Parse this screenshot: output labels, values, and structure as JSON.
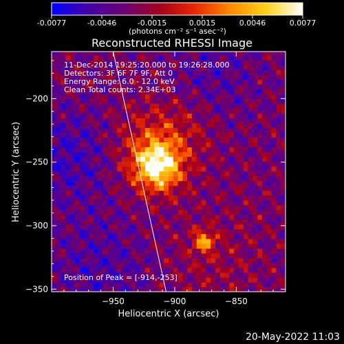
{
  "colorbar": {
    "ticks": [
      "-0.0077",
      "-0.0046",
      "-0.0015",
      "0.0015",
      "0.0046",
      "0.0077"
    ],
    "unit_label": "(photons cm⁻² s⁻¹ asec⁻²)",
    "min": -0.0077,
    "max": 0.0077,
    "colors": [
      "#0000ff",
      "#4400aa",
      "#6a0075",
      "#a30020",
      "#e82800",
      "#ff8a00",
      "#ffd21a",
      "#ffffff"
    ]
  },
  "chart_data": {
    "type": "heatmap",
    "title": "Reconstructed RHESSI Image",
    "xlabel": "Heliocentric X (arcsec)",
    "ylabel": "Heliocentric Y (arcsec)",
    "xlim": [
      -1000,
      -810
    ],
    "ylim": [
      -352,
      -163
    ],
    "xticks": [
      -950,
      -900,
      -850
    ],
    "yticks": [
      -200,
      -250,
      -300,
      -350
    ],
    "xtick_labels": [
      "−950",
      "−900",
      "−850"
    ],
    "ytick_labels": [
      "−200",
      "−250",
      "−300",
      "−350"
    ],
    "pixel_size_arcsec": 3.8,
    "peak": [
      -914,
      -253
    ],
    "secondary_source": [
      -876,
      -312
    ],
    "limb_line": [
      [
        -950,
        -163
      ],
      [
        -907,
        -352
      ]
    ],
    "annotations": {
      "time": "11-Dec-2014 19:25:20.000 to 19:26:28.000",
      "detectors": "Detectors: 3F 6F 7F 9F, Att 0",
      "energy": "Energy Range: 6.0 - 12.0 keV",
      "clean": "Clean     Total counts: 2.34E+03",
      "peak": "Position of Peak = [-914,-253]"
    }
  },
  "footer": {
    "date": "20-May-2022 11:03"
  }
}
